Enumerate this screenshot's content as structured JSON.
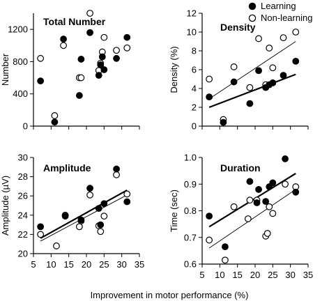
{
  "legend": {
    "learning_label": "Learning",
    "nonlearning_label": "Non-learning",
    "placement": "top-right"
  },
  "colors": {
    "learning": "#000000",
    "nonlearning": "#ffffff",
    "stroke": "#000000"
  },
  "shared_xlabel": "Improvement in motor performance (%)",
  "chart_data": [
    {
      "type": "scatter",
      "title": "Total Number",
      "ylabel": "Number",
      "xlabel": "",
      "xlim": [
        5,
        35
      ],
      "ylim": [
        0,
        1400
      ],
      "yticks": [
        0,
        400,
        800,
        1200
      ],
      "xticks": [
        5,
        10,
        15,
        20,
        25,
        30,
        35
      ],
      "show_xtick_labels": false,
      "series": [
        {
          "name": "Learning",
          "x": [
            7,
            11,
            13.5,
            18,
            18.5,
            21,
            23.5,
            24,
            24.5,
            25,
            28.5,
            31.5
          ],
          "y": [
            560,
            50,
            1080,
            380,
            830,
            1160,
            630,
            760,
            860,
            700,
            840,
            1100
          ]
        },
        {
          "name": "Non-learning",
          "x": [
            7,
            11,
            13.5,
            18,
            18.5,
            21,
            23.5,
            24,
            24.5,
            25,
            28.5,
            31.5
          ],
          "y": [
            840,
            130,
            1000,
            600,
            600,
            1400,
            690,
            780,
            920,
            1100,
            940,
            970
          ]
        }
      ],
      "fit_lines": []
    },
    {
      "type": "scatter",
      "title": "Density",
      "ylabel": "Density (%)",
      "xlabel": "",
      "xlim": [
        5,
        35
      ],
      "ylim": [
        0,
        12
      ],
      "yticks": [
        0,
        2,
        4,
        6,
        8,
        10,
        12
      ],
      "xticks": [
        5,
        10,
        15,
        20,
        25,
        30,
        35
      ],
      "show_xtick_labels": false,
      "series": [
        {
          "name": "Learning",
          "x": [
            7,
            11,
            14,
            18.5,
            21,
            23,
            24,
            25,
            28,
            31.5
          ],
          "y": [
            3.1,
            0.4,
            4.7,
            2.4,
            5.9,
            4.1,
            4.4,
            4.6,
            5.4,
            6.9
          ]
        },
        {
          "name": "Non-learning",
          "x": [
            7,
            11,
            14,
            18.5,
            21,
            23,
            24,
            25,
            28,
            31.5
          ],
          "y": [
            5.0,
            0.7,
            6.3,
            4.1,
            9.3,
            4.4,
            8.3,
            6.2,
            9.4,
            10.0
          ]
        }
      ],
      "fit_lines": [
        {
          "series": "Learning",
          "x": [
            7,
            31.5
          ],
          "y": [
            2.0,
            5.5
          ],
          "weight": "thick"
        },
        {
          "series": "Non-learning",
          "x": [
            7,
            31.5
          ],
          "y": [
            2.9,
            9.0
          ],
          "weight": "thin"
        }
      ]
    },
    {
      "type": "scatter",
      "title": "Amplitude",
      "ylabel": "Amplitude (µV)",
      "xlabel": "",
      "xlim": [
        5,
        35
      ],
      "ylim": [
        20,
        30
      ],
      "yticks": [
        20,
        22,
        24,
        26,
        28,
        30
      ],
      "xticks": [
        5,
        10,
        15,
        20,
        25,
        30,
        35
      ],
      "show_xtick_labels": true,
      "series": [
        {
          "name": "Learning",
          "x": [
            7,
            14,
            18.5,
            21,
            23.5,
            24,
            25,
            28.5,
            31.5
          ],
          "y": [
            22.8,
            23.9,
            23.5,
            26.8,
            24.7,
            23.0,
            25.2,
            28.8,
            25.4
          ]
        },
        {
          "name": "Non-learning",
          "x": [
            7,
            11.5,
            14,
            18,
            18.5,
            21,
            23.5,
            24,
            25,
            28.5,
            31.5
          ],
          "y": [
            22.0,
            20.8,
            24.0,
            22.8,
            23.4,
            26.1,
            22.9,
            22.3,
            23.9,
            28.2,
            26.2
          ]
        }
      ],
      "fit_lines": [
        {
          "series": "Learning",
          "x": [
            7,
            31.5
          ],
          "y": [
            21.6,
            26.6
          ],
          "weight": "thick"
        },
        {
          "series": "Non-learning",
          "x": [
            7,
            31.5
          ],
          "y": [
            21.3,
            26.1
          ],
          "weight": "thin"
        }
      ]
    },
    {
      "type": "scatter",
      "title": "Duration",
      "ylabel": "Time (sec)",
      "xlabel": "",
      "xlim": [
        5,
        35
      ],
      "ylim": [
        0.6,
        1.0
      ],
      "yticks": [
        0.6,
        0.7,
        0.8,
        0.9,
        1.0
      ],
      "xticks": [
        5,
        10,
        15,
        20,
        25,
        30,
        35
      ],
      "show_xtick_labels": true,
      "series": [
        {
          "name": "Learning",
          "x": [
            7,
            11.5,
            18.5,
            20.5,
            21,
            23,
            24,
            25,
            28.5,
            31.5
          ],
          "y": [
            0.78,
            0.665,
            0.91,
            0.83,
            0.88,
            0.835,
            0.89,
            0.905,
            0.995,
            0.87
          ]
        },
        {
          "name": "Non-learning",
          "x": [
            7,
            11.5,
            14,
            18,
            18.5,
            20.5,
            23,
            23.5,
            24,
            25,
            28.5,
            31.5
          ],
          "y": [
            0.69,
            0.615,
            0.815,
            0.77,
            0.84,
            0.84,
            0.705,
            0.715,
            0.815,
            0.79,
            0.9,
            0.89
          ]
        }
      ],
      "fit_lines": [
        {
          "series": "Learning",
          "x": [
            7,
            31.5
          ],
          "y": [
            0.74,
            0.94
          ],
          "weight": "thick"
        },
        {
          "series": "Non-learning",
          "x": [
            7,
            31.5
          ],
          "y": [
            0.66,
            0.88
          ],
          "weight": "thin"
        }
      ]
    }
  ]
}
